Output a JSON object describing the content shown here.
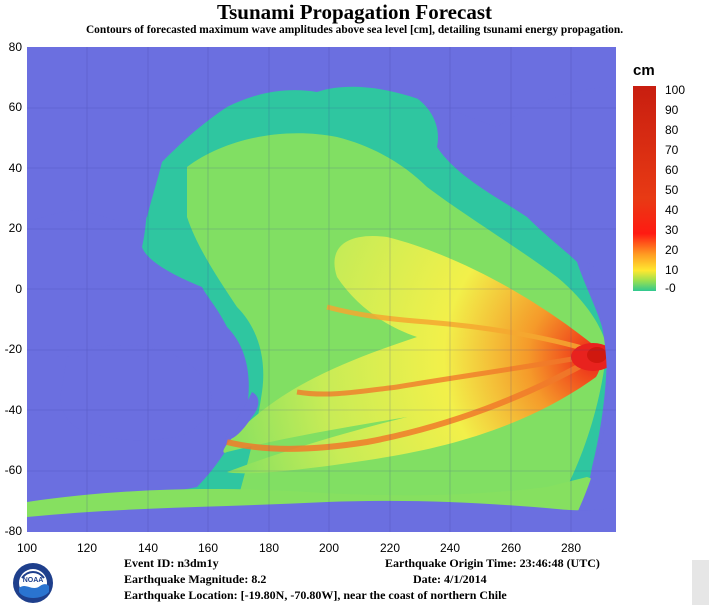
{
  "title": "Tsunami Propagation Forecast",
  "subtitle": "Contours of forecasted maximum wave amplitudes above sea level [cm], detailing tsunami energy propagation.",
  "map": {
    "y_ticks": [
      "80",
      "60",
      "40",
      "20",
      "0",
      "-20",
      "-40",
      "-60",
      "-80"
    ],
    "x_ticks": [
      "100",
      "120",
      "140",
      "160",
      "180",
      "200",
      "220",
      "240",
      "260",
      "280"
    ],
    "longitude_range": [
      100,
      295
    ],
    "latitude_range": [
      -80,
      80
    ],
    "epicenter": {
      "lon": 289.2,
      "lat": -19.8
    },
    "colors": {
      "land": "#6b6fe0",
      "ocean_low": "#2fc6a0",
      "ocean_mid": "#86e060",
      "ocean_high": "#f2f04a",
      "orange": "#f59a2a",
      "red": "#e8221e"
    }
  },
  "legend": {
    "unit": "cm",
    "labels": [
      "100",
      "90",
      "80",
      "70",
      "60",
      "50",
      "40",
      "30",
      "20",
      "10",
      "-0"
    ],
    "colors": [
      "#cc2010",
      "#d02810",
      "#d83010",
      "#e03a12",
      "#e84415",
      "#f05016",
      "#f86014",
      "#ff1010",
      "#ffb020",
      "#ffe830",
      "#30c890"
    ]
  },
  "event": {
    "event_id": "Event ID: n3dm1y",
    "magnitude": "Earthquake Magnitude: 8.2",
    "location": "Earthquake Location: [-19.80N, -70.80W], near the coast of northern Chile",
    "origin_time": "Earthquake Origin Time: 23:46:48 (UTC)",
    "date": "Date: 4/1/2014"
  },
  "logo": {
    "text": "NOAA",
    "icon": "noaa-logo-icon"
  }
}
